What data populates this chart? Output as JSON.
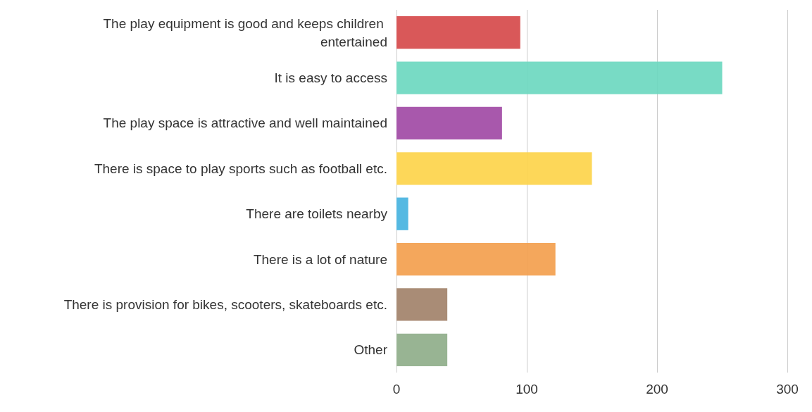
{
  "chart_data": {
    "type": "bar",
    "orientation": "horizontal",
    "categories": [
      "The play equipment is good and keeps children entertained",
      "It is easy to access",
      "The play space is attractive and well maintained",
      "There is space to play sports such as football etc.",
      "There are toilets nearby",
      "There is a lot of nature",
      "There is provision for bikes, scooters, skateboards etc.",
      "Other"
    ],
    "values": [
      95,
      250,
      81,
      150,
      9,
      122,
      39,
      39
    ],
    "colors": [
      "#d64a4b",
      "#6dd8c0",
      "#a14aa5",
      "#fdd44b",
      "#46b3e0",
      "#f39f4e",
      "#a2826a",
      "#8fae8a"
    ],
    "xlim": [
      0,
      300
    ],
    "xticks": [
      0,
      100,
      200,
      300
    ],
    "grid": "x"
  }
}
